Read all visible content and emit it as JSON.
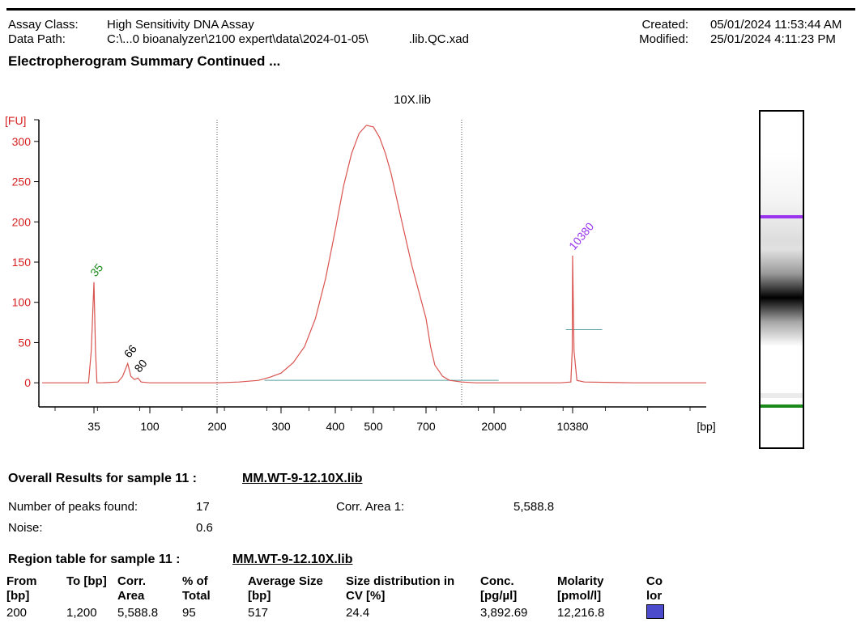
{
  "header": {
    "assay_class_label": "Assay Class:",
    "assay_class": "High Sensitivity DNA Assay",
    "data_path_label": "Data Path:",
    "data_path": "C:\\...0 bioanalyzer\\2100 expert\\data\\2024-01-05\\            .lib.QC.xad",
    "created_label": "Created:",
    "created": "05/01/2024 11:53:44 AM",
    "modified_label": "Modified:",
    "modified": "25/01/2024 4:11:23 PM",
    "summary_title": "Electropherogram Summary Continued ..."
  },
  "chart_data": {
    "type": "line",
    "title": "10X.lib",
    "xlabel": "[bp]",
    "ylabel": "[FU]",
    "ylim": [
      -30,
      335
    ],
    "y_ticks": [
      0,
      50,
      100,
      150,
      200,
      250,
      300
    ],
    "x_tick_labels": [
      "35",
      "100",
      "200",
      "300",
      "400",
      "500",
      "700",
      "2000",
      "10380"
    ],
    "x_ticks_minor_count": 16,
    "region_boundaries_bp": [
      200,
      1200
    ],
    "peak_labels": [
      {
        "label": "35",
        "x_bp": 35,
        "y": 125,
        "color": "#1a8a1a"
      },
      {
        "label": "66",
        "x_bp": 66,
        "y": 24,
        "color": "#000000"
      },
      {
        "label": "80",
        "x_bp": 80,
        "y": 6,
        "color": "#000000"
      },
      {
        "label": "10380",
        "x_bp": 10380,
        "y": 158,
        "color": "#9933ee"
      }
    ],
    "series": [
      {
        "color": "#d9534f",
        "x": [
          20,
          33,
          34,
          35,
          36,
          37,
          40,
          55,
          60,
          66,
          70,
          75,
          80,
          85,
          100,
          150,
          200,
          230,
          260,
          280,
          300,
          320,
          340,
          360,
          380,
          400,
          420,
          440,
          460,
          480,
          500,
          520,
          540,
          560,
          600,
          640,
          700,
          750,
          800,
          900,
          1000,
          1200,
          1500,
          2000,
          3000,
          5000,
          8000,
          10000,
          10300,
          10380,
          10450,
          10600,
          11000,
          14000,
          20000
        ],
        "y": [
          0,
          0,
          40,
          125,
          40,
          0,
          0,
          1,
          8,
          24,
          8,
          4,
          6,
          1,
          0,
          0,
          0,
          1,
          3,
          7,
          12,
          25,
          45,
          80,
          130,
          190,
          245,
          285,
          310,
          320,
          318,
          305,
          285,
          260,
          200,
          145,
          80,
          45,
          22,
          8,
          3,
          1,
          0,
          0,
          0,
          0,
          0,
          1,
          40,
          158,
          40,
          3,
          1,
          0,
          0
        ]
      }
    ]
  },
  "gel": {
    "marker_colors": [
      "#9933ee",
      "#1a8a1a"
    ]
  },
  "overall": {
    "title": "Overall Results for sample 11   :",
    "sample_name": "MM.WT-9-12.10X.lib",
    "peaks_label": "Number of peaks found:",
    "peaks_value": "17",
    "corr_area_label": "Corr. Area 1:",
    "corr_area_value": "5,588.8",
    "noise_label": "Noise:",
    "noise_value": "0.6"
  },
  "region": {
    "title": "Region table for sample 11   :",
    "sample_name": "MM.WT-9-12.10X.lib",
    "headers": [
      "From\n[bp]",
      "To [bp]",
      "Corr.\nArea",
      "% of\nTotal",
      "Average Size\n[bp]",
      "Size distribution in\nCV [%]",
      "Conc.\n[pg/µl]",
      "Molarity\n[pmol/l]",
      "Co\nlor"
    ],
    "row": [
      "200",
      "1,200",
      "5,588.8",
      "95",
      "517",
      "24.4",
      "3,892.69",
      "12,216.8"
    ],
    "swatch_color": "#4b4bcc"
  }
}
